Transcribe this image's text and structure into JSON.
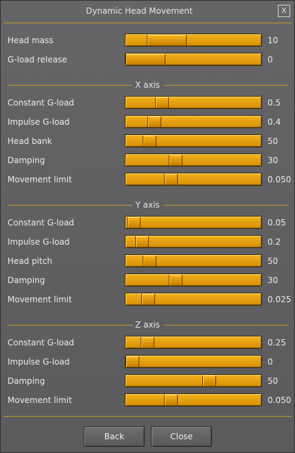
{
  "window": {
    "title": "Dynamic Head Movement",
    "close_label": "X"
  },
  "general": [
    {
      "label": "Head mass",
      "value": "10",
      "fraction": 0.22
    },
    {
      "label": "G-load release",
      "value": "0",
      "fraction": 0.0
    }
  ],
  "x_axis": {
    "title": "X axis",
    "rows": [
      {
        "label": "Constant G-load",
        "value": "0.5",
        "fraction": 0.24
      },
      {
        "label": "Impulse G-load",
        "value": "0.4",
        "fraction": 0.18
      },
      {
        "label": "Head bank",
        "value": "50",
        "fraction": 0.14
      },
      {
        "label": "Damping",
        "value": "30",
        "fraction": 0.35
      },
      {
        "label": "Movement limit",
        "value": "0.050",
        "fraction": 0.31
      }
    ]
  },
  "y_axis": {
    "title": "Y axis",
    "rows": [
      {
        "label": "Constant G-load",
        "value": "0.05",
        "fraction": 0.01
      },
      {
        "label": "Impulse G-load",
        "value": "0.2",
        "fraction": 0.08
      },
      {
        "label": "Head pitch",
        "value": "50",
        "fraction": 0.14
      },
      {
        "label": "Damping",
        "value": "30",
        "fraction": 0.35
      },
      {
        "label": "Movement limit",
        "value": "0.025",
        "fraction": 0.13
      }
    ]
  },
  "z_axis": {
    "title": "Z axis",
    "rows": [
      {
        "label": "Constant G-load",
        "value": "0.25",
        "fraction": 0.12
      },
      {
        "label": "Impulse G-load",
        "value": "0",
        "fraction": 0.0
      },
      {
        "label": "Damping",
        "value": "50",
        "fraction": 0.62
      },
      {
        "label": "Movement limit",
        "value": "0.050",
        "fraction": 0.31
      }
    ]
  },
  "buttons": {
    "back": "Back",
    "close": "Close"
  },
  "colors": {
    "accent": "#f0a810",
    "panel": "#5e5e60",
    "rule": "#c99a22"
  }
}
